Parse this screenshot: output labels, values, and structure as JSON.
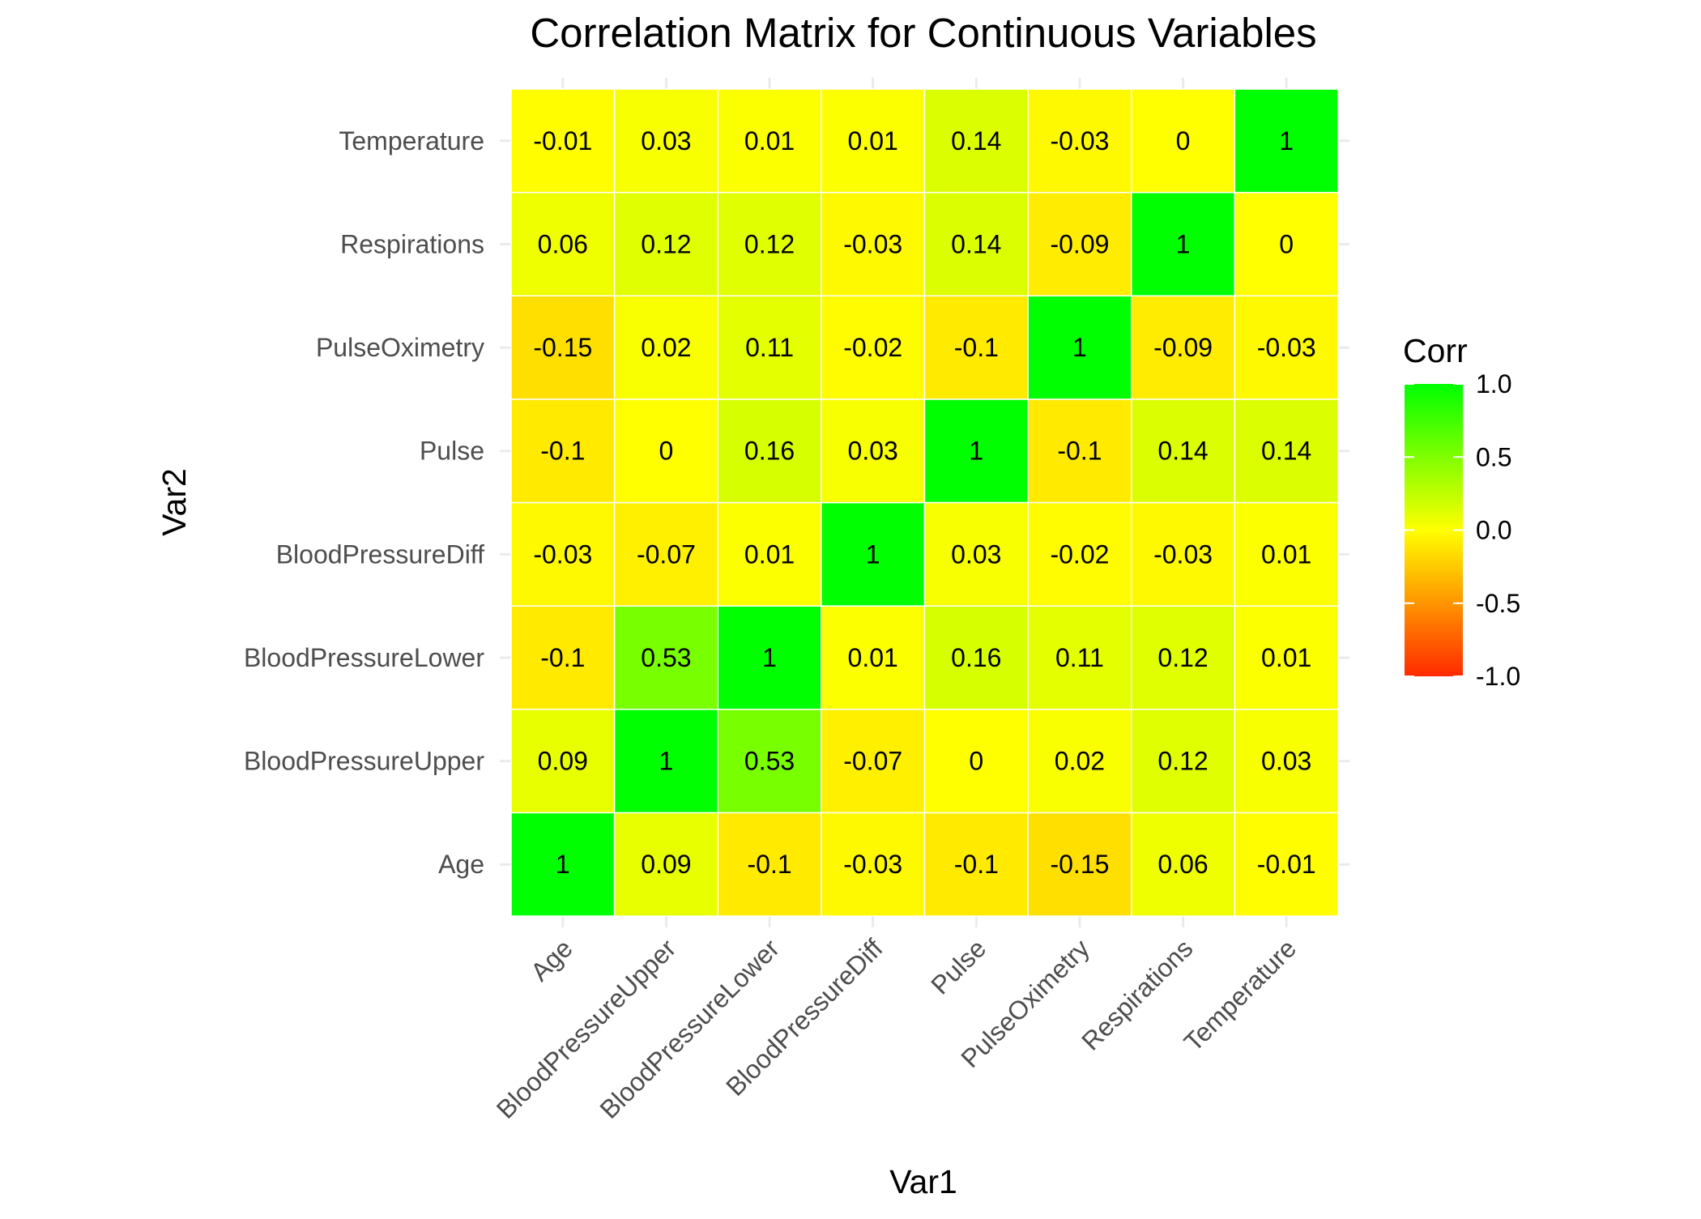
{
  "chart_data": {
    "type": "heatmap",
    "title": "Correlation Matrix for Continuous Variables",
    "xlabel": "Var1",
    "ylabel": "Var2",
    "x_categories": [
      "Age",
      "BloodPressureUpper",
      "BloodPressureLower",
      "BloodPressureDiff",
      "Pulse",
      "PulseOximetry",
      "Respirations",
      "Temperature"
    ],
    "y_categories": [
      "Age",
      "BloodPressureUpper",
      "BloodPressureLower",
      "BloodPressureDiff",
      "Pulse",
      "PulseOximetry",
      "Respirations",
      "Temperature"
    ],
    "values": [
      [
        1,
        0.09,
        -0.1,
        -0.03,
        -0.1,
        -0.15,
        0.06,
        -0.01
      ],
      [
        0.09,
        1,
        0.53,
        -0.07,
        0,
        0.02,
        0.12,
        0.03
      ],
      [
        -0.1,
        0.53,
        1,
        0.01,
        0.16,
        0.11,
        0.12,
        0.01
      ],
      [
        -0.03,
        -0.07,
        0.01,
        1,
        0.03,
        -0.02,
        -0.03,
        0.01
      ],
      [
        -0.1,
        0,
        0.16,
        0.03,
        1,
        -0.1,
        0.14,
        0.14
      ],
      [
        -0.15,
        0.02,
        0.11,
        -0.02,
        -0.1,
        1,
        -0.09,
        -0.03
      ],
      [
        0.06,
        0.12,
        0.12,
        -0.03,
        0.14,
        -0.09,
        1,
        0
      ],
      [
        -0.01,
        0.03,
        0.01,
        0.01,
        0.14,
        -0.03,
        0,
        1
      ]
    ],
    "value_labels": [
      [
        "1",
        "0.09",
        "-0.1",
        "-0.03",
        "-0.1",
        "-0.15",
        "0.06",
        "-0.01"
      ],
      [
        "0.09",
        "1",
        "0.53",
        "-0.07",
        "0",
        "0.02",
        "0.12",
        "0.03"
      ],
      [
        "-0.1",
        "0.53",
        "1",
        "0.01",
        "0.16",
        "0.11",
        "0.12",
        "0.01"
      ],
      [
        "-0.03",
        "-0.07",
        "0.01",
        "1",
        "0.03",
        "-0.02",
        "-0.03",
        "0.01"
      ],
      [
        "-0.1",
        "0",
        "0.16",
        "0.03",
        "1",
        "-0.1",
        "0.14",
        "0.14"
      ],
      [
        "-0.15",
        "0.02",
        "0.11",
        "-0.02",
        "-0.1",
        "1",
        "-0.09",
        "-0.03"
      ],
      [
        "0.06",
        "0.12",
        "0.12",
        "-0.03",
        "0.14",
        "-0.09",
        "1",
        "0"
      ],
      [
        "-0.01",
        "0.03",
        "0.01",
        "0.01",
        "0.14",
        "-0.03",
        "0",
        "1"
      ]
    ],
    "color_scale": {
      "low": "#ff2a00",
      "mid": "#ffff00",
      "high": "#00ff00",
      "min": -1,
      "max": 1
    },
    "legend": {
      "title": "Corr",
      "position": "right",
      "ticks": [
        1.0,
        0.5,
        0.0,
        -0.5,
        -1.0
      ],
      "tick_labels": [
        "1.0",
        "0.5",
        "0.0",
        "-0.5",
        "-1.0"
      ]
    },
    "grid": true
  }
}
